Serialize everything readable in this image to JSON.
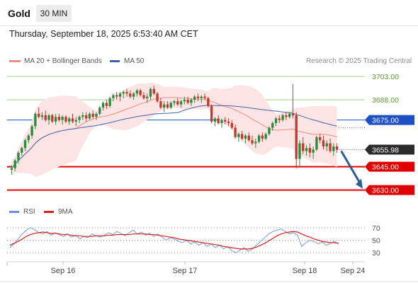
{
  "header": {
    "instrument": "Gold",
    "timeframe": "30 MIN",
    "datetime": "Thursday, September 18, 2025 6:53:40 AM CET"
  },
  "legend": {
    "ma20_bb": "MA 20 + Bollinger Bands",
    "ma50": "MA 50",
    "rsi": "RSI",
    "ma9": "9MA"
  },
  "credit": "Research © 2025 Trading Central",
  "colors": {
    "up": "#2b8a3e",
    "down": "#c0392b",
    "ma20": "#f28b82",
    "ma50": "#3f63a8",
    "bb_fill": "#fde4e4",
    "target_line": "#1f4fc4",
    "support_line": "#e00000",
    "resistance_line": "#a4d28a",
    "arrow": "#2f5b96",
    "rsi": "#6a8fe0",
    "rsi_ma": "#d62020"
  },
  "chart_data": [
    {
      "type": "candlestick",
      "title": "Gold 30 MIN",
      "x_ticks": [
        "Sep 16",
        "Sep 17",
        "Sep 18",
        "Sep 24"
      ],
      "ylim": [
        3623,
        3708
      ],
      "levels": [
        {
          "label": "3703.00",
          "value": 3703.0,
          "kind": "resistance"
        },
        {
          "label": "3688.00",
          "value": 3688.0,
          "kind": "resistance"
        },
        {
          "label": "3675.00",
          "value": 3675.0,
          "kind": "target"
        },
        {
          "label": "3655.98",
          "value": 3655.98,
          "kind": "last_price"
        },
        {
          "label": "3645.00",
          "value": 3645.0,
          "kind": "support"
        },
        {
          "label": "3630.00",
          "value": 3630.0,
          "kind": "support"
        }
      ],
      "candles": [
        [
          3643,
          3646,
          3640,
          3644
        ],
        [
          3644,
          3650,
          3642,
          3649
        ],
        [
          3649,
          3655,
          3647,
          3654
        ],
        [
          3654,
          3658,
          3652,
          3657
        ],
        [
          3657,
          3663,
          3655,
          3662
        ],
        [
          3662,
          3666,
          3660,
          3665
        ],
        [
          3665,
          3672,
          3663,
          3671
        ],
        [
          3671,
          3680,
          3669,
          3679
        ],
        [
          3679,
          3683,
          3676,
          3677
        ],
        [
          3677,
          3680,
          3675,
          3678
        ],
        [
          3678,
          3681,
          3674,
          3675
        ],
        [
          3675,
          3679,
          3672,
          3678
        ],
        [
          3678,
          3679,
          3673,
          3674
        ],
        [
          3674,
          3679,
          3672,
          3677
        ],
        [
          3677,
          3679,
          3674,
          3675
        ],
        [
          3675,
          3678,
          3672,
          3677
        ],
        [
          3677,
          3678,
          3673,
          3674
        ],
        [
          3674,
          3677,
          3672,
          3676
        ],
        [
          3676,
          3679,
          3673,
          3674
        ],
        [
          3674,
          3677,
          3671,
          3675
        ],
        [
          3675,
          3678,
          3673,
          3677
        ],
        [
          3677,
          3680,
          3675,
          3678
        ],
        [
          3678,
          3680,
          3674,
          3676
        ],
        [
          3676,
          3680,
          3675,
          3679
        ],
        [
          3679,
          3681,
          3676,
          3677
        ],
        [
          3677,
          3680,
          3675,
          3679
        ],
        [
          3679,
          3684,
          3678,
          3683
        ],
        [
          3683,
          3687,
          3681,
          3686
        ],
        [
          3686,
          3688,
          3682,
          3684
        ],
        [
          3684,
          3690,
          3683,
          3689
        ],
        [
          3689,
          3692,
          3687,
          3691
        ],
        [
          3691,
          3693,
          3688,
          3690
        ],
        [
          3690,
          3693,
          3687,
          3692
        ],
        [
          3692,
          3694,
          3689,
          3693
        ],
        [
          3693,
          3695,
          3690,
          3692
        ],
        [
          3692,
          3694,
          3689,
          3690
        ],
        [
          3690,
          3693,
          3688,
          3692
        ],
        [
          3692,
          3695,
          3690,
          3694
        ],
        [
          3694,
          3695,
          3690,
          3691
        ],
        [
          3691,
          3693,
          3688,
          3689
        ],
        [
          3689,
          3692,
          3686,
          3690
        ],
        [
          3690,
          3696,
          3688,
          3695
        ],
        [
          3695,
          3697,
          3691,
          3692
        ],
        [
          3692,
          3693,
          3686,
          3687
        ],
        [
          3687,
          3689,
          3682,
          3683
        ],
        [
          3683,
          3687,
          3680,
          3685
        ],
        [
          3685,
          3687,
          3682,
          3683
        ],
        [
          3683,
          3687,
          3682,
          3686
        ],
        [
          3686,
          3688,
          3684,
          3687
        ],
        [
          3687,
          3689,
          3684,
          3685
        ],
        [
          3685,
          3688,
          3683,
          3687
        ],
        [
          3687,
          3690,
          3685,
          3688
        ],
        [
          3688,
          3690,
          3685,
          3686
        ],
        [
          3686,
          3689,
          3684,
          3688
        ],
        [
          3688,
          3691,
          3686,
          3690
        ],
        [
          3690,
          3692,
          3687,
          3689
        ],
        [
          3689,
          3691,
          3686,
          3690
        ],
        [
          3690,
          3692,
          3688,
          3689
        ],
        [
          3689,
          3690,
          3683,
          3684
        ],
        [
          3684,
          3685,
          3673,
          3674
        ],
        [
          3674,
          3677,
          3671,
          3676
        ],
        [
          3676,
          3678,
          3672,
          3673
        ],
        [
          3673,
          3676,
          3670,
          3675
        ],
        [
          3675,
          3677,
          3672,
          3674
        ],
        [
          3674,
          3676,
          3671,
          3673
        ],
        [
          3673,
          3675,
          3669,
          3670
        ],
        [
          3670,
          3672,
          3663,
          3664
        ],
        [
          3664,
          3667,
          3661,
          3666
        ],
        [
          3666,
          3668,
          3662,
          3663
        ],
        [
          3663,
          3666,
          3660,
          3665
        ],
        [
          3665,
          3667,
          3661,
          3662
        ],
        [
          3662,
          3665,
          3659,
          3660
        ],
        [
          3660,
          3663,
          3657,
          3661
        ],
        [
          3661,
          3666,
          3660,
          3665
        ],
        [
          3665,
          3667,
          3661,
          3663
        ],
        [
          3663,
          3667,
          3662,
          3666
        ],
        [
          3666,
          3671,
          3665,
          3670
        ],
        [
          3670,
          3674,
          3668,
          3673
        ],
        [
          3673,
          3677,
          3671,
          3676
        ],
        [
          3676,
          3678,
          3673,
          3675
        ],
        [
          3675,
          3679,
          3674,
          3678
        ],
        [
          3678,
          3680,
          3675,
          3677
        ],
        [
          3677,
          3680,
          3676,
          3679
        ],
        [
          3679,
          3698,
          3676,
          3678
        ],
        [
          3678,
          3680,
          3644,
          3650
        ],
        [
          3650,
          3662,
          3645,
          3660
        ],
        [
          3660,
          3664,
          3653,
          3655
        ],
        [
          3655,
          3659,
          3652,
          3657
        ],
        [
          3657,
          3660,
          3651,
          3654
        ],
        [
          3654,
          3658,
          3650,
          3656
        ],
        [
          3656,
          3665,
          3655,
          3664
        ],
        [
          3664,
          3666,
          3660,
          3662
        ],
        [
          3662,
          3665,
          3656,
          3658
        ],
        [
          3658,
          3662,
          3655,
          3660
        ],
        [
          3660,
          3663,
          3654,
          3655
        ],
        [
          3655,
          3660,
          3652,
          3658
        ],
        [
          3658,
          3660,
          3654,
          3656
        ]
      ]
    },
    {
      "type": "line",
      "title": "RSI",
      "ylim": [
        20,
        80
      ],
      "y_ticks": [
        70,
        50,
        30
      ],
      "series": [
        {
          "name": "RSI",
          "values": [
            38,
            44,
            52,
            60,
            66,
            70,
            67,
            62,
            60,
            64,
            58,
            62,
            59,
            56,
            60,
            55,
            58,
            52,
            56,
            54,
            60,
            57,
            55,
            58,
            62,
            59,
            64,
            61,
            57,
            62,
            66,
            60,
            63,
            58,
            61,
            56,
            60,
            55,
            50,
            54,
            52,
            48,
            46,
            50,
            44,
            47,
            42,
            46,
            40,
            44,
            38,
            42,
            36,
            40,
            33,
            30,
            34,
            38,
            32,
            36,
            42,
            48,
            54,
            60,
            64,
            66,
            68,
            64,
            60,
            62,
            58,
            40,
            46,
            50,
            48,
            44,
            47,
            42,
            45,
            48,
            44
          ]
        },
        {
          "name": "9MA",
          "values": [
            42,
            45,
            48,
            52,
            56,
            59,
            61,
            62,
            63,
            62,
            61,
            61,
            60,
            59,
            59,
            58,
            57,
            57,
            56,
            56,
            56,
            57,
            57,
            57,
            58,
            58,
            59,
            59,
            59,
            59,
            60,
            60,
            60,
            60,
            59,
            59,
            58,
            57,
            56,
            55,
            54,
            52,
            51,
            50,
            49,
            48,
            47,
            46,
            45,
            44,
            43,
            42,
            40,
            39,
            38,
            37,
            36,
            36,
            36,
            37,
            39,
            42,
            45,
            49,
            53,
            57,
            60,
            62,
            63,
            64,
            63,
            60,
            57,
            55,
            52,
            50,
            48,
            47,
            46,
            46,
            45
          ]
        }
      ]
    }
  ]
}
